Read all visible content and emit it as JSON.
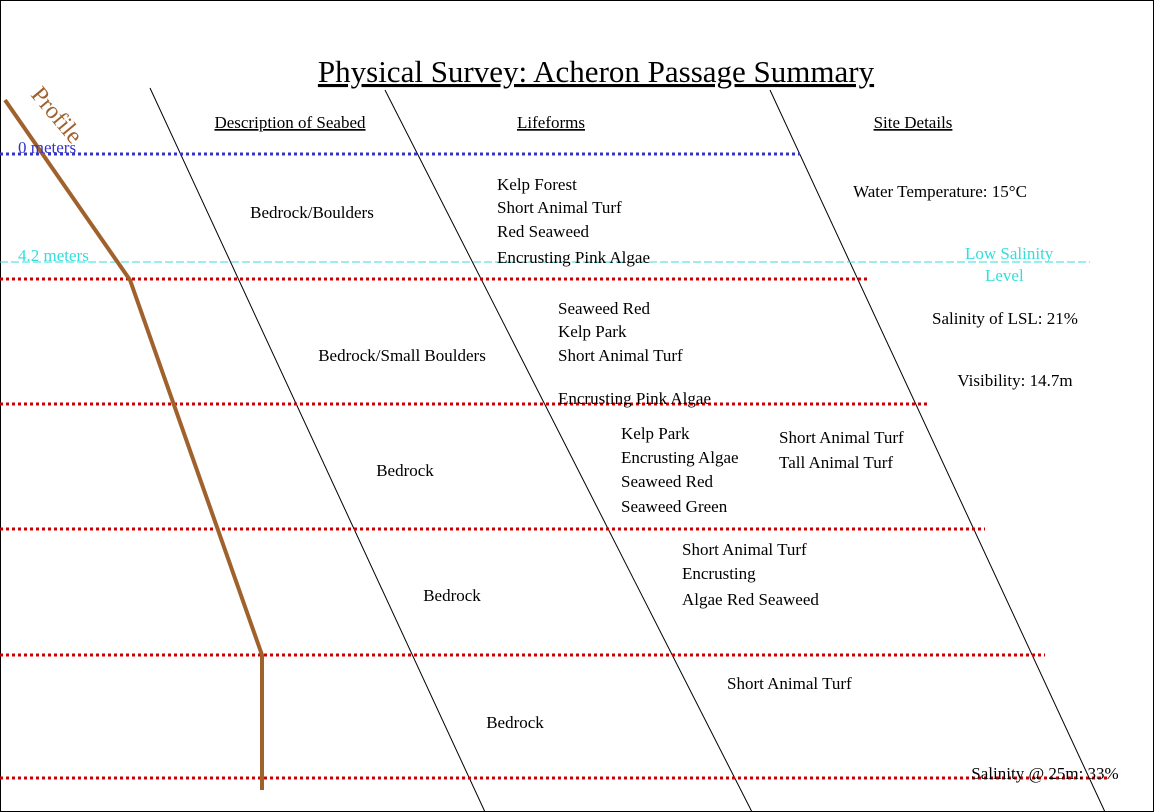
{
  "title": "Physical Survey: Acheron Passage Summary",
  "headers": [
    "Description of Seabed",
    "Lifeforms",
    "Site Details"
  ],
  "profile_label": "Profile",
  "depth_labels": [
    "0 meters",
    "4.2  meters"
  ],
  "low_salinity_label": [
    "Low Salinity",
    "Level"
  ],
  "seabed": [
    "Bedrock/Boulders",
    "Bedrock/Small Boulders",
    "Bedrock",
    "Bedrock",
    "Bedrock"
  ],
  "lifeforms": [
    [
      "Kelp Forest",
      "Short Animal Turf",
      "Red Seaweed",
      "Encrusting Pink Algae"
    ],
    [
      "Seaweed Red",
      "Kelp Park",
      "Short Animal Turf",
      "Encrusting Pink Algae"
    ],
    [
      "Kelp Park",
      "Encrusting Algae",
      "Seaweed Red",
      "Seaweed Green"
    ],
    [
      "Short Animal Turf",
      "Tall Animal Turf"
    ],
    [
      "Short Animal Turf",
      "Encrusting",
      "Algae Red Seaweed"
    ],
    [
      "Short Animal Turf"
    ]
  ],
  "site_details": [
    "Water Temperature: 15°C",
    "Salinity of LSL: 21%",
    "Visibility: 14.7m",
    "Salinity @ 25m: 33%"
  ]
}
